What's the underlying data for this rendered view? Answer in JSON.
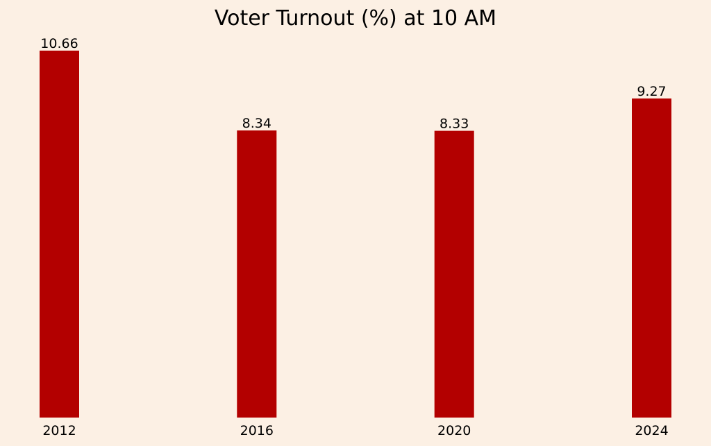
{
  "chart_data": {
    "type": "bar",
    "title": "Voter Turnout (%) at 10 AM",
    "xlabel": "",
    "ylabel": "",
    "categories": [
      "2012",
      "2016",
      "2020",
      "2024"
    ],
    "values": [
      10.66,
      8.34,
      8.33,
      9.27
    ],
    "data_labels": [
      "10.66",
      "8.34",
      "8.33",
      "9.27"
    ],
    "ylim": [
      0,
      10.66
    ],
    "grid": false,
    "legend": "none",
    "colors": {
      "bar": "#b30000",
      "background": "#fcf0e4",
      "text": "#000000"
    }
  }
}
